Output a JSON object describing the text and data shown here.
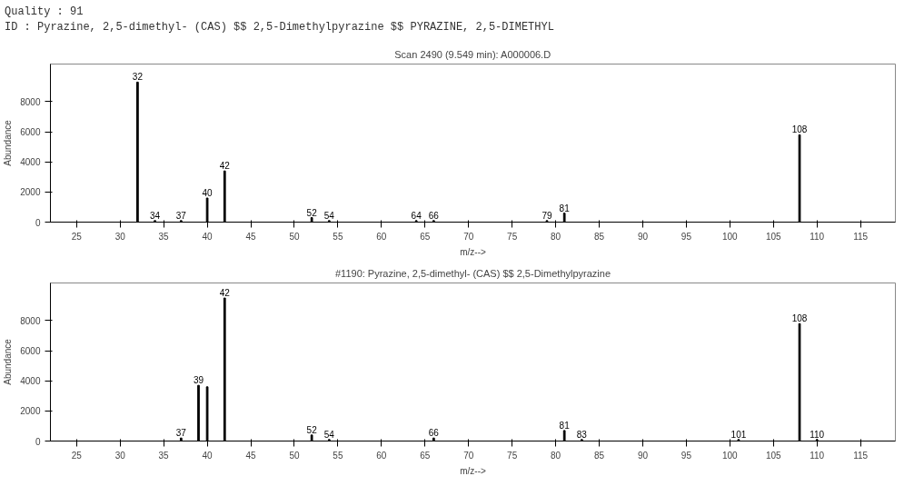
{
  "chart_data": [
    {
      "type": "bar",
      "title": "Scan 2490 (9.549 min): A000006.D",
      "xlabel": "m/z-->",
      "ylabel": "Abundance",
      "annotations": [
        "Quality : 91",
        "ID : Pyrazine, 2,5-dimethyl- (CAS) $$ 2,5-Dimethylpyrazine $$ PYRAZINE, 2,5-DIMETHYL",
        {
          "text": "32",
          "x": 32,
          "y": 9300
        },
        {
          "text": "34",
          "x": 34,
          "y": 100
        },
        {
          "text": "37",
          "x": 37,
          "y": 100
        },
        {
          "text": "40",
          "x": 40,
          "y": 1600
        },
        {
          "text": "42",
          "x": 42,
          "y": 3400
        },
        {
          "text": "52",
          "x": 52,
          "y": 300
        },
        {
          "text": "54",
          "x": 54,
          "y": 100
        },
        {
          "text": "64",
          "x": 64,
          "y": 100
        },
        {
          "text": "66",
          "x": 66,
          "y": 100
        },
        {
          "text": "79",
          "x": 79,
          "y": 100
        },
        {
          "text": "81",
          "x": 81,
          "y": 600
        },
        {
          "text": "108",
          "x": 108,
          "y": 5800
        }
      ],
      "x": [
        32,
        34,
        37,
        40,
        42,
        52,
        54,
        64,
        66,
        79,
        81,
        108
      ],
      "values": [
        9300,
        100,
        100,
        1600,
        3400,
        300,
        100,
        100,
        100,
        100,
        600,
        5800
      ],
      "color": "#000000",
      "xlim": [
        22,
        119
      ],
      "xticks": [
        25,
        30,
        35,
        40,
        45,
        50,
        55,
        60,
        65,
        70,
        75,
        80,
        85,
        90,
        95,
        100,
        105,
        110,
        115
      ],
      "ylim": [
        0,
        10500
      ],
      "yticks": [
        0,
        2000,
        4000,
        6000,
        8000
      ],
      "grid": false
    },
    {
      "type": "bar",
      "title": "#1190: Pyrazine, 2,5-dimethyl- (CAS) $$ 2,5-Dimethylpyrazine",
      "xlabel": "m/z-->",
      "ylabel": "Abundance",
      "annotations": [
        {
          "text": "37",
          "x": 37,
          "y": 200
        },
        {
          "text": "39",
          "x": 39,
          "y": 3700
        },
        {
          "text": "42",
          "x": 42,
          "y": 9500
        },
        {
          "text": "52",
          "x": 52,
          "y": 400
        },
        {
          "text": "54",
          "x": 54,
          "y": 100
        },
        {
          "text": "66",
          "x": 66,
          "y": 200
        },
        {
          "text": "81",
          "x": 81,
          "y": 700
        },
        {
          "text": "83",
          "x": 83,
          "y": 100
        },
        {
          "text": "101",
          "x": 101,
          "y": 100
        },
        {
          "text": "108",
          "x": 108,
          "y": 7800
        },
        {
          "text": "110",
          "x": 110,
          "y": 100
        }
      ],
      "x": [
        37,
        39,
        40,
        42,
        52,
        54,
        66,
        81,
        83,
        101,
        108,
        110
      ],
      "values": [
        200,
        3700,
        3600,
        9500,
        400,
        100,
        200,
        700,
        100,
        100,
        7800,
        100
      ],
      "color": "#000000",
      "xlim": [
        22,
        119
      ],
      "xticks": [
        25,
        30,
        35,
        40,
        45,
        50,
        55,
        60,
        65,
        70,
        75,
        80,
        85,
        90,
        95,
        100,
        105,
        110,
        115
      ],
      "ylim": [
        0,
        10500
      ],
      "yticks": [
        0,
        2000,
        4000,
        6000,
        8000
      ],
      "grid": false
    }
  ]
}
